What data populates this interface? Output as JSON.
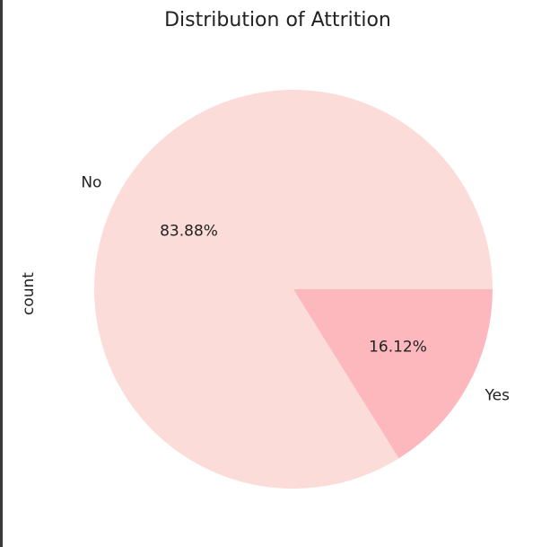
{
  "chart_data": {
    "type": "pie",
    "title": "Distribution of Attrition",
    "ylabel": "count",
    "categories": [
      "No",
      "Yes"
    ],
    "values": [
      83.88,
      16.12
    ],
    "labels_pct": [
      "83.88%",
      "16.12%"
    ],
    "colors": [
      "#fcdcd8",
      "#fdb8be"
    ],
    "start_angle": 0,
    "direction": "counterclockwise"
  }
}
